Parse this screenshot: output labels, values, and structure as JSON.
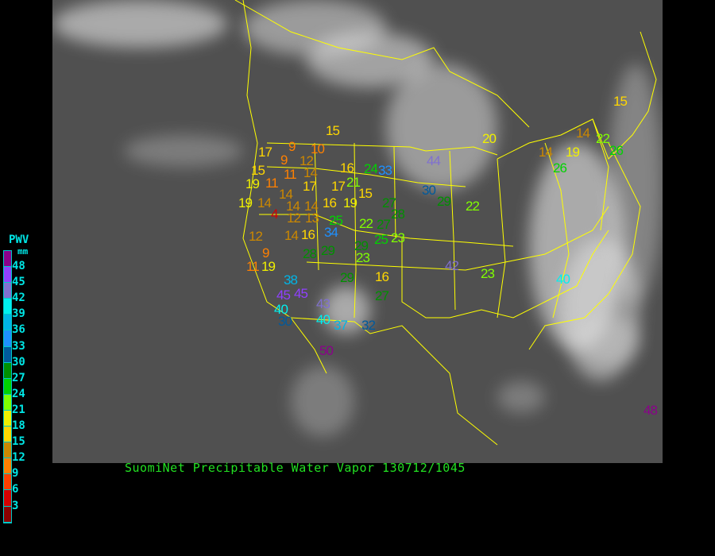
{
  "title": "SuomiNet Precipitable Water Vapor 130712/1045",
  "legend": {
    "title": "PWV",
    "unit": "mm",
    "ticks": [
      "48",
      "45",
      "42",
      "39",
      "36",
      "33",
      "30",
      "27",
      "24",
      "21",
      "18",
      "15",
      "12",
      "9",
      "6",
      "3"
    ],
    "colors_top_to_bottom": [
      "#8b008b",
      "#9040ff",
      "#8070d0",
      "#00f0f0",
      "#00b4e6",
      "#1e90ff",
      "#005a9c",
      "#009000",
      "#00d400",
      "#80ff00",
      "#f0f000",
      "#ffd700",
      "#cc8800",
      "#ff8000",
      "#ff4000",
      "#d40000",
      "#8b0000"
    ]
  },
  "stations": [
    15,
    9,
    10,
    17,
    9,
    12,
    14,
    16,
    24,
    33,
    44,
    15,
    11,
    19,
    11,
    17,
    17,
    21,
    30,
    29,
    14,
    19,
    14,
    14,
    14,
    16,
    19,
    15,
    27,
    4,
    12,
    13,
    25,
    22,
    27,
    28,
    34,
    12,
    14,
    16,
    25,
    23,
    29,
    23,
    9,
    28,
    29,
    11,
    19,
    29,
    16,
    38,
    45,
    45,
    27,
    43,
    40,
    30,
    40,
    37,
    32,
    50,
    20,
    15,
    14,
    22,
    14,
    19,
    26,
    26,
    22,
    42,
    23,
    40,
    48
  ],
  "colors": {
    "map_background": "#505050",
    "borders": "#ffff00",
    "title": "#22e022",
    "legend_text": "#00e5e5"
  }
}
